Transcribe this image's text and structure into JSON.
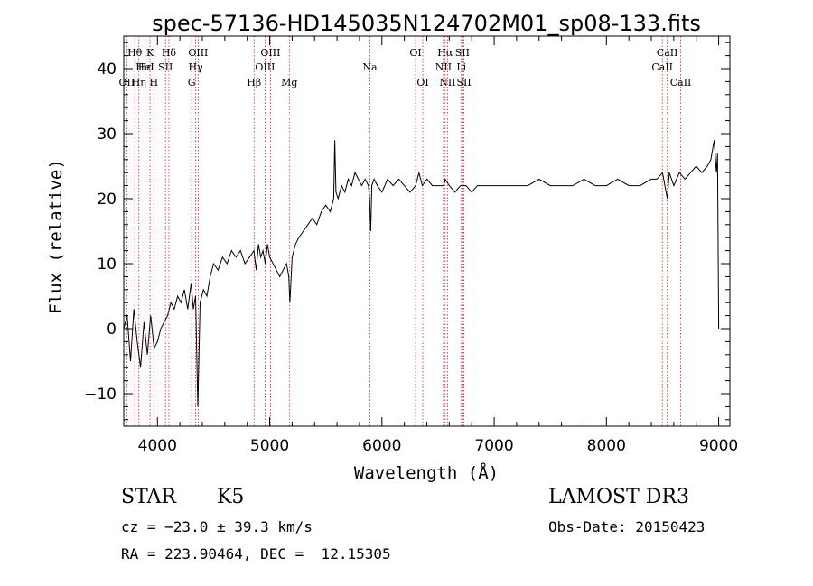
{
  "chart_data": {
    "type": "line",
    "title": "spec-57136-HD145035N124702M01_sp08-133.fits",
    "xlabel": "Wavelength (Å)",
    "ylabel": "Flux (relative)",
    "xlim": [
      3700,
      9100
    ],
    "ylim": [
      -15,
      45
    ],
    "xticks": [
      4000,
      5000,
      6000,
      7000,
      8000,
      9000
    ],
    "yticks": [
      -10,
      0,
      10,
      20,
      30,
      40
    ],
    "ytick_labels": [
      "−10",
      "0",
      "10",
      "20",
      "30",
      "40"
    ],
    "series": [
      {
        "name": "spectrum",
        "x": [
          3700,
          3730,
          3760,
          3790,
          3820,
          3850,
          3880,
          3910,
          3940,
          3970,
          4000,
          4030,
          4060,
          4090,
          4120,
          4150,
          4180,
          4210,
          4240,
          4270,
          4300,
          4320,
          4340,
          4360,
          4380,
          4410,
          4440,
          4470,
          4500,
          4540,
          4580,
          4620,
          4660,
          4700,
          4740,
          4780,
          4820,
          4860,
          4880,
          4900,
          4920,
          4940,
          4960,
          4980,
          5000,
          5030,
          5060,
          5090,
          5120,
          5150,
          5170,
          5180,
          5200,
          5230,
          5260,
          5300,
          5340,
          5380,
          5420,
          5460,
          5500,
          5540,
          5570,
          5580,
          5590,
          5610,
          5640,
          5670,
          5700,
          5730,
          5760,
          5790,
          5820,
          5850,
          5880,
          5890,
          5900,
          5910,
          5930,
          5960,
          6000,
          6050,
          6100,
          6150,
          6200,
          6250,
          6300,
          6330,
          6360,
          6400,
          6450,
          6500,
          6550,
          6563,
          6600,
          6650,
          6700,
          6750,
          6800,
          6850,
          6900,
          7000,
          7100,
          7200,
          7300,
          7400,
          7500,
          7600,
          7700,
          7800,
          7900,
          8000,
          8100,
          8200,
          8300,
          8400,
          8450,
          8500,
          8542,
          8560,
          8600,
          8650,
          8700,
          8750,
          8800,
          8850,
          8900,
          8930,
          8960,
          8980,
          8990,
          9000
        ],
        "y": [
          0,
          2,
          -5,
          3,
          -2,
          -6,
          1,
          -4,
          2,
          -3,
          -2,
          0,
          1,
          2,
          4,
          3,
          5,
          4,
          6,
          3,
          7,
          3,
          5,
          -12,
          4,
          6,
          5,
          8,
          10,
          9,
          11,
          10,
          12,
          11,
          12,
          10,
          11,
          12,
          9,
          13,
          11,
          12,
          10,
          13,
          11,
          10,
          9,
          8,
          9,
          10,
          8,
          4,
          11,
          13,
          14,
          15,
          16,
          17,
          16,
          18,
          19,
          18,
          20,
          29,
          21,
          20,
          22,
          21,
          23,
          22,
          24,
          23,
          22,
          23,
          22,
          20,
          15,
          22,
          23,
          22,
          21,
          23,
          22,
          23,
          22,
          21,
          22,
          24,
          22,
          23,
          22,
          22,
          22,
          23,
          22,
          21,
          22,
          22,
          21,
          22,
          22,
          22,
          22,
          22,
          22,
          23,
          22,
          22,
          22,
          23,
          22,
          22,
          23,
          22,
          22,
          23,
          23,
          24,
          20,
          24,
          22,
          24,
          23,
          24,
          25,
          24,
          25,
          26,
          29,
          24,
          27,
          0
        ]
      }
    ],
    "spectral_lines": [
      {
        "label": "Hθ",
        "x": 3798,
        "row": 1
      },
      {
        "label": "OII",
        "x": 3727,
        "row": 3
      },
      {
        "label": "Hε",
        "x": 3889,
        "row": 2
      },
      {
        "label": "HeI",
        "x": 3889,
        "row": 2
      },
      {
        "label": "Hη",
        "x": 3835,
        "row": 3
      },
      {
        "label": "K",
        "x": 3934,
        "row": 1
      },
      {
        "label": "H",
        "x": 3968,
        "row": 3
      },
      {
        "label": "SII",
        "x": 4072,
        "row": 2
      },
      {
        "label": "Hδ",
        "x": 4102,
        "row": 1
      },
      {
        "label": "OIII",
        "x": 4363,
        "row": 1
      },
      {
        "label": "Hγ",
        "x": 4340,
        "row": 2
      },
      {
        "label": "G",
        "x": 4305,
        "row": 3
      },
      {
        "label": "Hβ",
        "x": 4861,
        "row": 3
      },
      {
        "label": "OIII",
        "x": 5007,
        "row": 1
      },
      {
        "label": "OIII",
        "x": 4959,
        "row": 2
      },
      {
        "label": "Mg",
        "x": 5175,
        "row": 3
      },
      {
        "label": "Na",
        "x": 5893,
        "row": 2
      },
      {
        "label": "OI",
        "x": 6300,
        "row": 1
      },
      {
        "label": "OI",
        "x": 6364,
        "row": 3
      },
      {
        "label": "Hα",
        "x": 6563,
        "row": 1
      },
      {
        "label": "NII",
        "x": 6548,
        "row": 2
      },
      {
        "label": "NII",
        "x": 6584,
        "row": 3
      },
      {
        "label": "SII",
        "x": 6717,
        "row": 1
      },
      {
        "label": "Li",
        "x": 6708,
        "row": 2
      },
      {
        "label": "SII",
        "x": 6731,
        "row": 3
      },
      {
        "label": "CaII",
        "x": 8542,
        "row": 1
      },
      {
        "label": "CaII",
        "x": 8498,
        "row": 2
      },
      {
        "label": "CaII",
        "x": 8662,
        "row": 3
      }
    ]
  },
  "info": {
    "object_type": "STAR",
    "subclass": "K5",
    "survey": "LAMOST DR3",
    "cz": "cz = −23.0 ± 39.3 km/s",
    "obs_date": "Obs-Date: 20150423",
    "coords": "RA = 223.90464, DEC =  12.15305"
  },
  "colors": {
    "spectrum": "#000000",
    "line_marker": "#cc2222",
    "axes": "#000000"
  }
}
